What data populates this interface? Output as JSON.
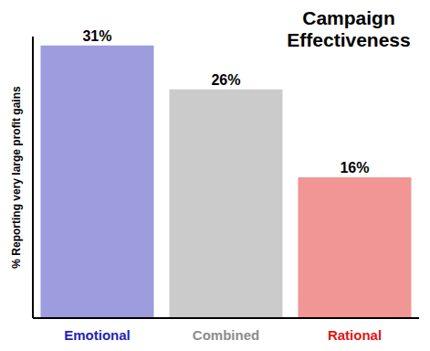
{
  "chart_data": {
    "type": "bar",
    "title": "Campaign Effectiveness",
    "ylabel": "% Reporting very large profit gains",
    "categories": [
      "Emotional",
      "Combined",
      "Rational"
    ],
    "values": [
      31,
      26,
      16
    ],
    "value_labels": [
      "31%",
      "26%",
      "16%"
    ],
    "colors": [
      "#2323b8",
      "#8c8c8c",
      "#e01515"
    ],
    "ylim": [
      0,
      32
    ],
    "data_labels": true,
    "tick_labels": "x"
  }
}
